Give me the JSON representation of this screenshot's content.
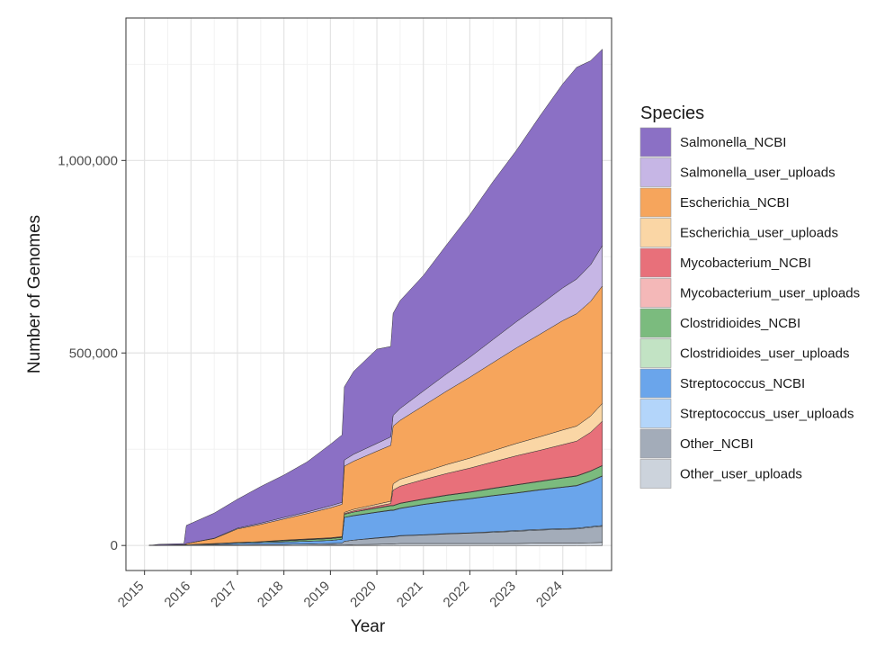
{
  "chart_data": {
    "type": "area",
    "stacked": true,
    "xlabel": "Year",
    "ylabel": "Number of Genomes",
    "xlim": [
      2014.6,
      2025.05
    ],
    "ylim": [
      -65000,
      1370000
    ],
    "grid": true,
    "legend_position": "right",
    "legend_title": "Species",
    "x_ticks": [
      2015,
      2016,
      2017,
      2018,
      2019,
      2020,
      2021,
      2022,
      2023,
      2024
    ],
    "x_tick_labels": [
      "2015",
      "2016",
      "2017",
      "2018",
      "2019",
      "2020",
      "2021",
      "2022",
      "2023",
      "2024"
    ],
    "y_ticks": [
      0,
      500000,
      1000000
    ],
    "y_tick_labels": [
      "0",
      "500,000",
      "1,000,000"
    ],
    "x": [
      2015.1,
      2015.3,
      2015.85,
      2015.9,
      2016.5,
      2017.0,
      2017.5,
      2018.0,
      2018.5,
      2019.0,
      2019.25,
      2019.3,
      2019.5,
      2020.0,
      2020.3,
      2020.35,
      2020.5,
      2021.0,
      2021.5,
      2022.0,
      2022.5,
      2023.0,
      2023.5,
      2024.0,
      2024.3,
      2024.6,
      2024.85
    ],
    "series": [
      {
        "name": "Other_user_uploads",
        "color": "#ccd3dc",
        "values": [
          0,
          0,
          0,
          0,
          0,
          0,
          0,
          0,
          0,
          1000,
          1000,
          1000,
          2000,
          3000,
          4000,
          4000,
          5000,
          5000,
          5000,
          5000,
          5000,
          5000,
          6000,
          6000,
          6000,
          7000,
          8000
        ]
      },
      {
        "name": "Other_NCBI",
        "color": "#a3acb9",
        "values": [
          0,
          1000,
          2000,
          2000,
          2000,
          2000,
          3000,
          3000,
          4000,
          4000,
          5000,
          10000,
          12000,
          16000,
          18000,
          18000,
          20000,
          22000,
          25000,
          27000,
          29000,
          32000,
          34000,
          36000,
          37000,
          40000,
          42000
        ]
      },
      {
        "name": "Streptococcus_user_uploads",
        "color": "#b3d5fa",
        "values": [
          0,
          0,
          0,
          0,
          0,
          0,
          0,
          0,
          0,
          0,
          0,
          0,
          0,
          1000,
          1000,
          1000,
          1000,
          1000,
          1000,
          1000,
          2000,
          2000,
          2000,
          2000,
          2000,
          2000,
          2000
        ]
      },
      {
        "name": "Streptococcus_NCBI",
        "color": "#6aa5eb",
        "values": [
          0,
          0,
          0,
          0,
          2000,
          4000,
          5000,
          6000,
          7000,
          8000,
          10000,
          62000,
          63000,
          66000,
          68000,
          68000,
          70000,
          78000,
          83000,
          88000,
          93000,
          97000,
          102000,
          107000,
          110000,
          118000,
          128000
        ]
      },
      {
        "name": "Clostridioides_user_uploads",
        "color": "#c2e3c4",
        "values": [
          0,
          0,
          0,
          0,
          0,
          0,
          0,
          0,
          0,
          0,
          0,
          0,
          1000,
          1000,
          1000,
          1000,
          1000,
          1000,
          1000,
          1000,
          1000,
          1000,
          1000,
          1000,
          1000,
          1000,
          1000
        ]
      },
      {
        "name": "Clostridioides_NCBI",
        "color": "#7bbb7e",
        "values": [
          0,
          0,
          0,
          0,
          1000,
          2000,
          2000,
          3000,
          4000,
          5000,
          5000,
          8000,
          9000,
          10000,
          11000,
          11000,
          12000,
          13000,
          15000,
          16000,
          18000,
          20000,
          21000,
          23000,
          24000,
          25000,
          26000
        ]
      },
      {
        "name": "Mycobacterium_user_uploads",
        "color": "#f4b8b8",
        "values": [
          0,
          0,
          0,
          0,
          0,
          0,
          0,
          0,
          0,
          0,
          0,
          0,
          0,
          1000,
          1000,
          1000,
          1000,
          1000,
          1000,
          1000,
          1000,
          1000,
          1000,
          1000,
          1000,
          1000,
          1000
        ]
      },
      {
        "name": "Mycobacterium_NCBI",
        "color": "#e8707a",
        "values": [
          0,
          0,
          0,
          0,
          0,
          0,
          0,
          1000,
          1000,
          1000,
          1000,
          2000,
          3000,
          4000,
          5000,
          40000,
          44000,
          50000,
          56000,
          62000,
          68000,
          75000,
          80000,
          86000,
          90000,
          100000,
          115000
        ]
      },
      {
        "name": "Escherichia_user_uploads",
        "color": "#fad6a5",
        "values": [
          0,
          0,
          0,
          0,
          0,
          0,
          0,
          1000,
          1000,
          1000,
          1000,
          3000,
          4000,
          5000,
          6000,
          16000,
          18000,
          20000,
          23000,
          26000,
          29000,
          32000,
          35000,
          38000,
          39000,
          42000,
          46000
        ]
      },
      {
        "name": "Escherichia_NCBI",
        "color": "#f6a55c",
        "values": [
          0,
          0,
          0,
          3000,
          13000,
          35000,
          45000,
          55000,
          66000,
          78000,
          84000,
          120000,
          125000,
          138000,
          145000,
          150000,
          153000,
          172000,
          191000,
          210000,
          229000,
          248000,
          266000,
          284000,
          292000,
          298000,
          305000
        ]
      },
      {
        "name": "Salmonella_user_uploads",
        "color": "#c6b6e5",
        "values": [
          0,
          0,
          0,
          0,
          1000,
          2000,
          3000,
          4000,
          4000,
          5000,
          5000,
          16000,
          18000,
          20000,
          22000,
          28000,
          31000,
          38000,
          45000,
          52000,
          60000,
          68000,
          76000,
          85000,
          90000,
          95000,
          105000
        ]
      },
      {
        "name": "Salmonella_NCBI",
        "color": "#8b70c5",
        "values": [
          0,
          2000,
          3000,
          47000,
          65000,
          75000,
          95000,
          110000,
          130000,
          160000,
          175000,
          190000,
          215000,
          245000,
          235000,
          265000,
          280000,
          300000,
          335000,
          370000,
          410000,
          445000,
          490000,
          530000,
          550000,
          530000,
          510000
        ]
      }
    ]
  }
}
